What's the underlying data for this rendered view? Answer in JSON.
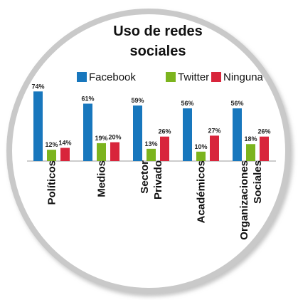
{
  "chart_data": {
    "type": "bar",
    "title": "Uso de redes sociales",
    "categories": [
      "Políticos",
      "Medios",
      "Sector Privado",
      "Académicos",
      "Organizaciones Sociales"
    ],
    "series": [
      {
        "name": "Facebook",
        "color": "#1877bd",
        "values": [
          74,
          61,
          59,
          56,
          56
        ],
        "value_labels": [
          "74%",
          "61%",
          "59%",
          "56%",
          "56%"
        ]
      },
      {
        "name": "Twitter",
        "color": "#7cb41e",
        "values": [
          12,
          19,
          13,
          10,
          18
        ],
        "value_labels": [
          "12%",
          "19%",
          "13%",
          "10%",
          "18%"
        ]
      },
      {
        "name": "Ninguna",
        "color": "#d8253b",
        "values": [
          14,
          20,
          26,
          27,
          26
        ],
        "value_labels": [
          "14%",
          "20%",
          "26%",
          "27%",
          "26%"
        ]
      }
    ],
    "legend": "top"
  }
}
